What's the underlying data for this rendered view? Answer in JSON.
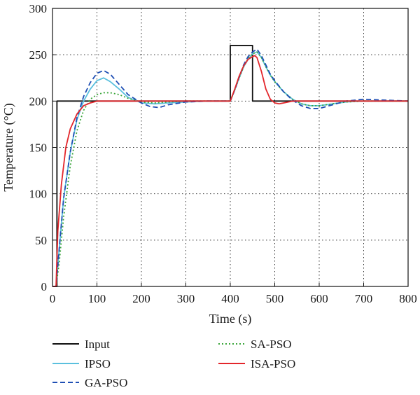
{
  "chart_data": {
    "type": "line",
    "xlabel": "Time (s)",
    "ylabel": "Temperature (°C)",
    "xlim": [
      0,
      800
    ],
    "ylim": [
      0,
      300
    ],
    "xticks": [
      0,
      100,
      200,
      300,
      400,
      500,
      600,
      700,
      800
    ],
    "yticks": [
      0,
      50,
      100,
      150,
      200,
      250,
      300
    ],
    "grid": true,
    "legend_position": "bottom",
    "series": [
      {
        "name": "Input",
        "color": "#111111",
        "dash": "solid",
        "x": [
          0,
          10,
          10,
          400,
          400,
          450,
          450,
          800
        ],
        "y": [
          0,
          0,
          200,
          200,
          260,
          260,
          200,
          200
        ]
      },
      {
        "name": "IPSO",
        "color": "#5bc0de",
        "dash": "solid",
        "x": [
          0,
          8,
          15,
          25,
          40,
          55,
          70,
          85,
          100,
          115,
          130,
          150,
          170,
          200,
          230,
          260,
          300,
          350,
          400,
          410,
          420,
          430,
          440,
          450,
          460,
          470,
          480,
          490,
          500,
          520,
          540,
          560,
          580,
          600,
          630,
          660,
          700,
          750,
          800
        ],
        "y": [
          0,
          0,
          40,
          95,
          145,
          180,
          200,
          213,
          222,
          225,
          221,
          213,
          204,
          198,
          197,
          198,
          199,
          200,
          200,
          212,
          225,
          237,
          245,
          251,
          253,
          247,
          237,
          228,
          221,
          210,
          202,
          197,
          195,
          195,
          197,
          199,
          200,
          200,
          200
        ]
      },
      {
        "name": "SA-PSO",
        "color": "#3aa63a",
        "dash": "dotted",
        "x": [
          0,
          8,
          15,
          25,
          40,
          55,
          70,
          85,
          100,
          115,
          130,
          150,
          170,
          200,
          230,
          260,
          300,
          350,
          400,
          410,
          420,
          430,
          440,
          450,
          460,
          470,
          480,
          490,
          500,
          520,
          540,
          560,
          580,
          600,
          630,
          660,
          700,
          750,
          800
        ],
        "y": [
          0,
          0,
          25,
          75,
          130,
          168,
          190,
          202,
          207,
          209,
          209,
          207,
          203,
          199,
          198,
          199,
          200,
          200,
          200,
          212,
          225,
          237,
          246,
          251,
          253,
          247,
          237,
          228,
          221,
          210,
          202,
          197,
          195,
          195,
          197,
          199,
          200,
          200,
          200
        ]
      },
      {
        "name": "GA-PSO",
        "color": "#1f4fb4",
        "dash": "dashed",
        "x": [
          0,
          8,
          15,
          25,
          40,
          55,
          70,
          85,
          100,
          115,
          130,
          150,
          170,
          200,
          220,
          240,
          260,
          300,
          350,
          400,
          410,
          420,
          430,
          440,
          450,
          460,
          470,
          480,
          490,
          500,
          520,
          540,
          560,
          580,
          600,
          630,
          660,
          700,
          750,
          800
        ],
        "y": [
          0,
          0,
          40,
          95,
          145,
          182,
          205,
          220,
          230,
          233,
          229,
          218,
          207,
          198,
          194,
          193,
          196,
          199,
          200,
          200,
          212,
          226,
          239,
          248,
          253,
          256,
          249,
          239,
          229,
          222,
          210,
          201,
          195,
          192,
          192,
          196,
          200,
          202,
          201,
          200
        ]
      },
      {
        "name": "ISA-PSO",
        "color": "#e3262b",
        "dash": "solid",
        "x": [
          0,
          8,
          12,
          20,
          30,
          40,
          55,
          70,
          85,
          100,
          120,
          150,
          200,
          300,
          400,
          410,
          420,
          430,
          440,
          450,
          455,
          460,
          470,
          480,
          490,
          500,
          510,
          520,
          540,
          560,
          600,
          700,
          800
        ],
        "y": [
          0,
          0,
          60,
          110,
          150,
          170,
          186,
          195,
          198,
          200,
          200,
          200,
          200,
          200,
          200,
          213,
          227,
          238,
          245,
          248,
          249,
          247,
          232,
          213,
          202,
          198,
          197,
          198,
          200,
          200,
          200,
          200,
          200
        ]
      }
    ]
  }
}
